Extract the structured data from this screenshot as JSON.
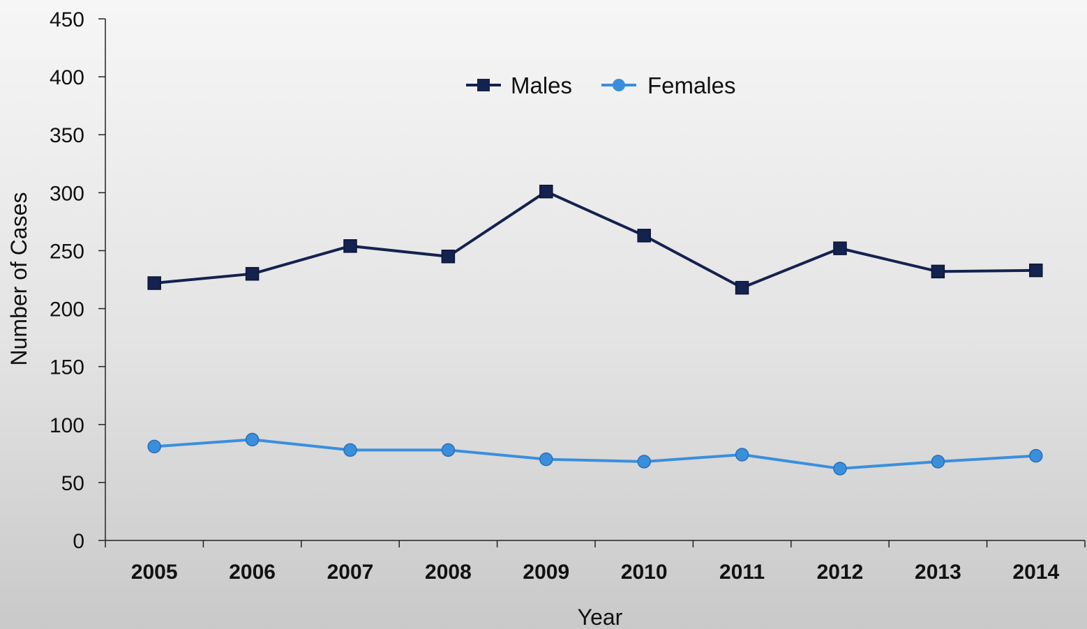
{
  "chart_data": {
    "type": "line",
    "title": "",
    "xlabel": "Year",
    "ylabel": "Number of Cases",
    "categories": [
      "2005",
      "2006",
      "2007",
      "2008",
      "2009",
      "2010",
      "2011",
      "2012",
      "2013",
      "2014"
    ],
    "ylim": [
      0,
      450
    ],
    "yticks": [
      "0",
      "50",
      "100",
      "150",
      "200",
      "250",
      "300",
      "350",
      "400",
      "450"
    ],
    "grid": false,
    "legend_position": "top-center",
    "series": [
      {
        "name": "Males",
        "marker": "square",
        "color": "#14224f",
        "values": [
          222,
          230,
          254,
          245,
          301,
          263,
          218,
          252,
          232,
          233
        ]
      },
      {
        "name": "Females",
        "marker": "circle",
        "color": "#3a8fdc",
        "values": [
          81,
          87,
          78,
          78,
          70,
          68,
          74,
          62,
          68,
          73
        ]
      }
    ]
  }
}
